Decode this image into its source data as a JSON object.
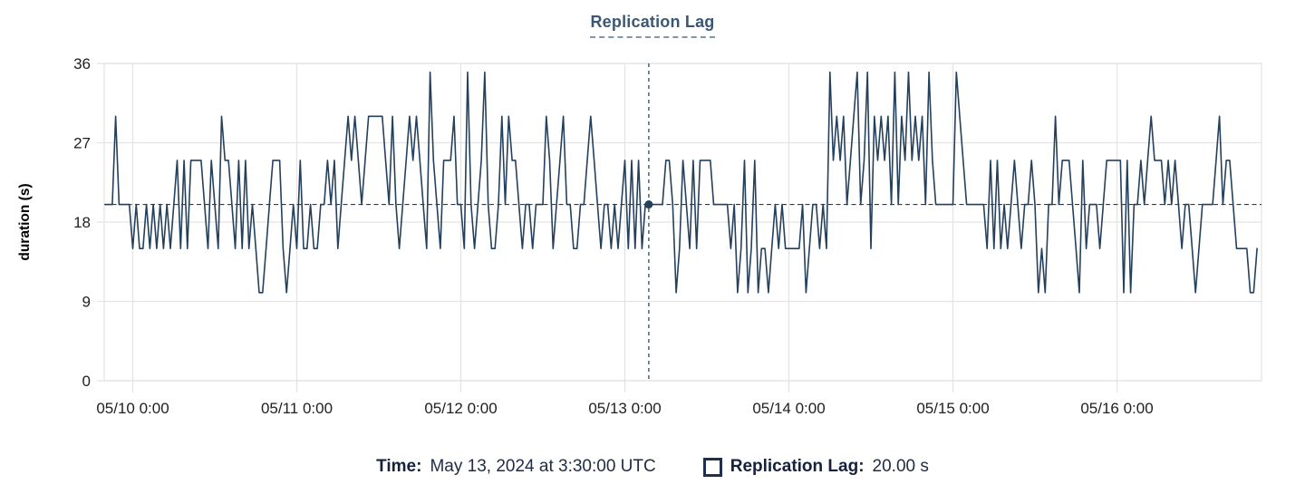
{
  "title": "Replication Lag",
  "colors": {
    "line": "#24405c",
    "crosshair_vertical": "#2e5b73",
    "crosshair_horizontal": "#24405c",
    "grid": "#e4e4e4",
    "title_text": "#3a5876",
    "tick_text": "#212121",
    "legend_text": "#15223d"
  },
  "legend": {
    "time_label": "Time:",
    "time_value": "May 13, 2024 at 3:30:00 UTC",
    "series_label": "Replication Lag:",
    "series_value": "20.00 s",
    "swatch_icon": "hollow-square"
  },
  "chart_data": {
    "type": "line",
    "title": "Replication Lag",
    "xlabel": "",
    "ylabel": "duration (s)",
    "ylim": [
      0,
      36
    ],
    "grid": true,
    "y_axis": {
      "label": "duration (s)",
      "ticks": [
        0,
        9,
        18,
        27,
        36
      ]
    },
    "x_axis": {
      "tick_hours": [
        0,
        24,
        48,
        72,
        96,
        120,
        144
      ],
      "tick_labels": [
        "05/10 0:00",
        "05/11 0:00",
        "05/12 0:00",
        "05/13 0:00",
        "05/14 0:00",
        "05/15 0:00",
        "05/16 0:00"
      ]
    },
    "crosshair": {
      "time_hours": 75.5,
      "value": 20,
      "time_label": "May 13, 2024 at 3:30:00 UTC",
      "value_label": "20.00 s"
    },
    "series": [
      {
        "name": "Replication Lag",
        "unit": "s",
        "start_hours": -4,
        "interval_hours": 0.5,
        "values": [
          20,
          20,
          20,
          30,
          20,
          20,
          20,
          20,
          15,
          20,
          15,
          15,
          20,
          15,
          20,
          15,
          20,
          15,
          20,
          15,
          20,
          25,
          15,
          25,
          15,
          25,
          25,
          25,
          25,
          20,
          15,
          25,
          20,
          15,
          30,
          25,
          25,
          20,
          15,
          25,
          15,
          25,
          15,
          20,
          15,
          10,
          10,
          15,
          20,
          25,
          25,
          25,
          15,
          10,
          15,
          20,
          15,
          25,
          15,
          15,
          20,
          15,
          15,
          20,
          20,
          25,
          20,
          25,
          15,
          20,
          25,
          30,
          25,
          30,
          25,
          20,
          25,
          30,
          30,
          30,
          30,
          30,
          25,
          20,
          30,
          20,
          15,
          20,
          25,
          30,
          25,
          30,
          25,
          20,
          15,
          35,
          25,
          20,
          15,
          25,
          25,
          25,
          30,
          20,
          20,
          15,
          35,
          20,
          15,
          20,
          25,
          35,
          20,
          15,
          15,
          20,
          30,
          20,
          30,
          25,
          25,
          20,
          15,
          20,
          20,
          15,
          20,
          20,
          20,
          30,
          25,
          15,
          20,
          25,
          30,
          20,
          20,
          15,
          15,
          20,
          20,
          25,
          30,
          25,
          20,
          15,
          20,
          20,
          15,
          20,
          15,
          20,
          25,
          15,
          25,
          15,
          25,
          15,
          20,
          20,
          20,
          20,
          20,
          20,
          25,
          25,
          20,
          10,
          15,
          25,
          20,
          15,
          25,
          15,
          25,
          25,
          25,
          25,
          20,
          20,
          20,
          20,
          20,
          15,
          20,
          10,
          15,
          25,
          10,
          15,
          25,
          10,
          15,
          15,
          10,
          15,
          20,
          15,
          20,
          15,
          15,
          15,
          15,
          15,
          20,
          10,
          15,
          20,
          20,
          15,
          20,
          15,
          35,
          25,
          30,
          25,
          30,
          20,
          25,
          30,
          35,
          20,
          25,
          35,
          15,
          30,
          25,
          30,
          25,
          30,
          20,
          35,
          20,
          30,
          25,
          35,
          25,
          30,
          25,
          30,
          20,
          35,
          25,
          20,
          20,
          20,
          20,
          20,
          20,
          35,
          30,
          25,
          20,
          20,
          20,
          20,
          20,
          20,
          15,
          25,
          15,
          25,
          15,
          20,
          15,
          20,
          25,
          20,
          15,
          20,
          20,
          25,
          20,
          10,
          15,
          10,
          20,
          20,
          30,
          20,
          25,
          25,
          25,
          20,
          15,
          10,
          25,
          15,
          20,
          20,
          20,
          15,
          20,
          25,
          25,
          25,
          25,
          25,
          10,
          25,
          10,
          20,
          20,
          25,
          20,
          25,
          30,
          25,
          25,
          25,
          20,
          25,
          20,
          25,
          20,
          15,
          20,
          20,
          15,
          10,
          15,
          20,
          20,
          20,
          20,
          25,
          30,
          20,
          25,
          25,
          20,
          15,
          15,
          15,
          15,
          10,
          10,
          15
        ]
      }
    ]
  }
}
